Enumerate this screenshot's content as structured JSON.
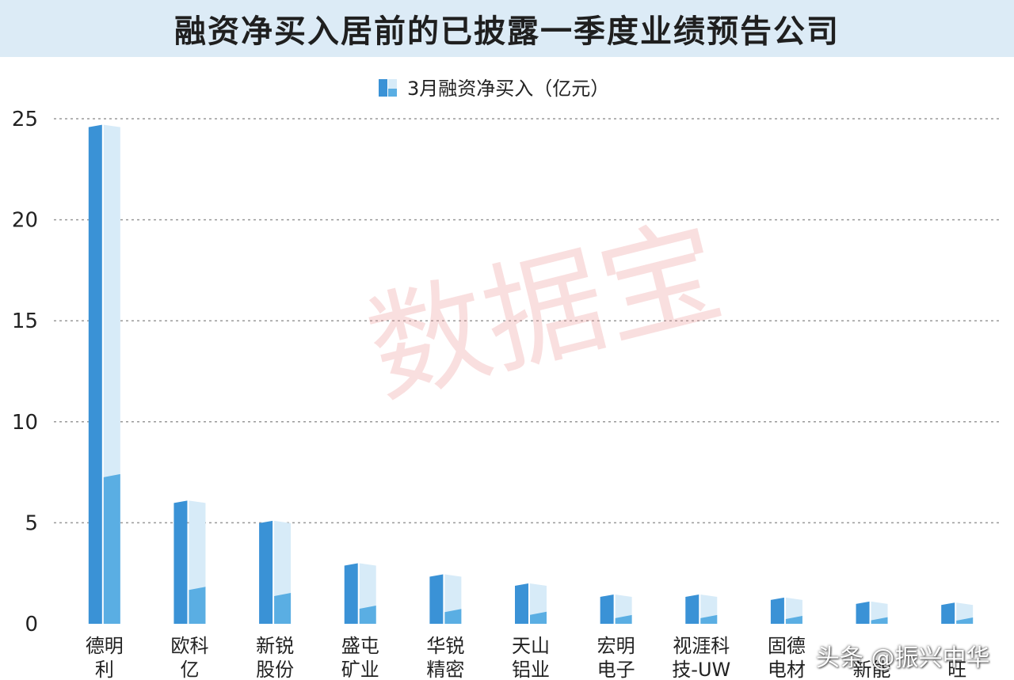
{
  "chart_data": {
    "type": "bar",
    "title": "融资净买入居前的已披露一季度业绩预告公司",
    "legend": "3月融资净买入（亿元）",
    "legend_position": "top-center",
    "grid": true,
    "ylim": [
      0,
      25
    ],
    "yticks": [
      "0",
      "5",
      "10",
      "15",
      "20",
      "25"
    ],
    "categories": [
      [
        "德明",
        "利"
      ],
      [
        "欧科",
        "亿"
      ],
      [
        "新锐",
        "股份"
      ],
      [
        "盛屯",
        "矿业"
      ],
      [
        "华锐",
        "精密"
      ],
      [
        "天山",
        "铝业"
      ],
      [
        "宏明",
        "电子"
      ],
      [
        "视涯科",
        "技-UW"
      ],
      [
        "固德",
        "电材"
      ],
      [
        "",
        "新能"
      ],
      [
        "",
        "旺"
      ]
    ],
    "series": [
      {
        "name": "3月融资净买入（亿元）",
        "values": [
          24.7,
          6.1,
          5.1,
          3.0,
          2.45,
          2.0,
          1.45,
          1.45,
          1.3,
          1.1,
          1.05
        ]
      }
    ],
    "colors": {
      "bar_dark": "#3a92d6",
      "bar_light": "#d7ebf8",
      "bar_mid": "#5aaee3",
      "grid": "#9a9a9a"
    }
  },
  "watermark": "数据宝",
  "credit": "头条 @振兴中华"
}
